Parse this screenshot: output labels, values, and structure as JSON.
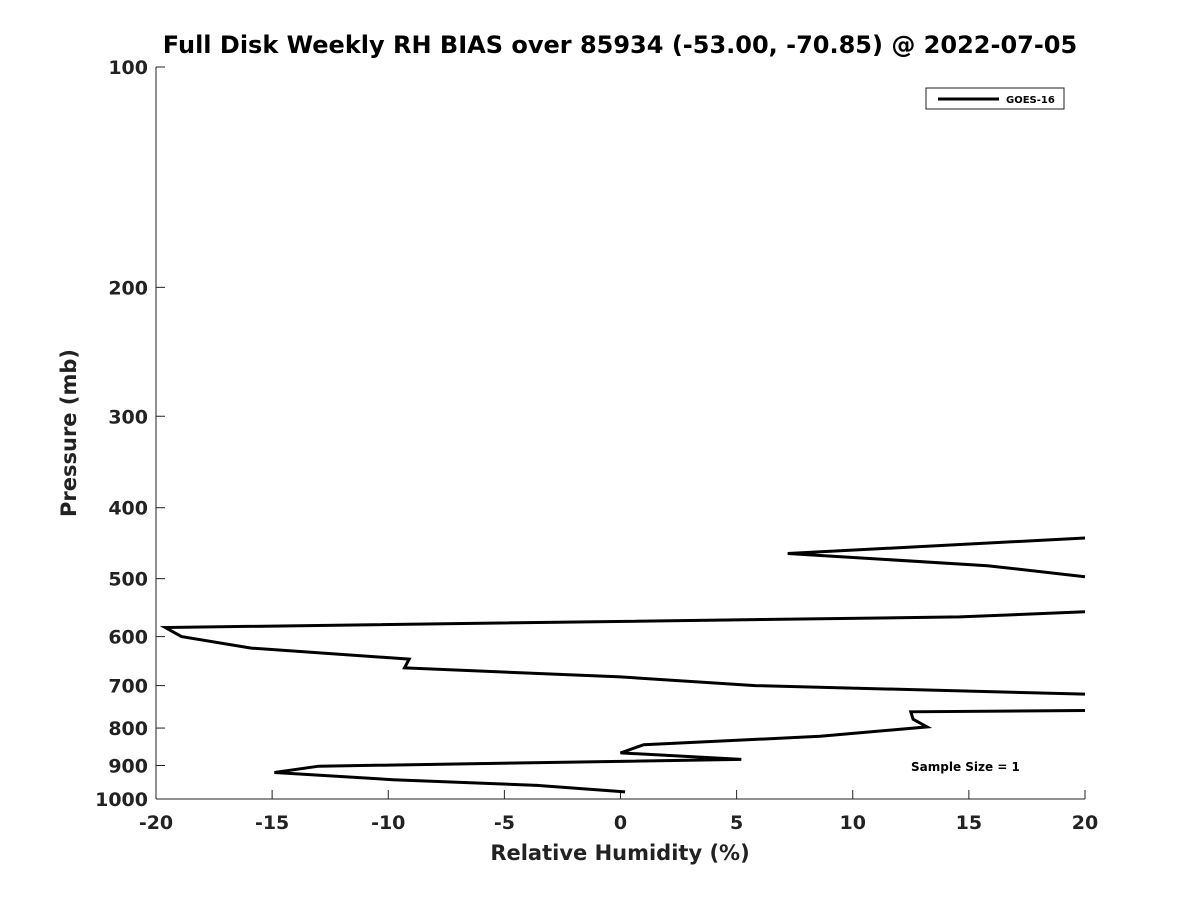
{
  "chart_data": {
    "type": "line",
    "title": "Full Disk Weekly RH BIAS over 85934 (-53.00, -70.85) @ 2022-07-05",
    "xlabel": "Relative Humidity (%)",
    "ylabel": "Pressure (mb)",
    "xlim": [
      -20,
      20
    ],
    "ylim": [
      100,
      1000
    ],
    "yscale": "log",
    "y_reversed": true,
    "xticks": [
      -20,
      -15,
      -10,
      -5,
      0,
      5,
      10,
      15,
      20
    ],
    "yticks": [
      100,
      200,
      300,
      400,
      500,
      600,
      700,
      800,
      900,
      1000
    ],
    "grid": false,
    "legend_position": "top-right",
    "annotation": "Sample Size = 1",
    "line_color": "#000000",
    "series": [
      {
        "name": "GOES-16",
        "points": [
          {
            "x": 20.0,
            "y": 440
          },
          {
            "x": 7.2,
            "y": 462
          },
          {
            "x": 15.8,
            "y": 480
          },
          {
            "x": 20.0,
            "y": 497
          },
          null,
          {
            "x": 20.0,
            "y": 555
          },
          {
            "x": 14.6,
            "y": 564
          },
          {
            "x": -19.6,
            "y": 583
          },
          {
            "x": -18.9,
            "y": 600
          },
          {
            "x": -15.9,
            "y": 622
          },
          {
            "x": -9.1,
            "y": 644
          },
          {
            "x": -9.3,
            "y": 662
          },
          {
            "x": 0.0,
            "y": 681
          },
          {
            "x": 5.8,
            "y": 700
          },
          {
            "x": 20.0,
            "y": 719
          },
          null,
          {
            "x": 20.0,
            "y": 757
          },
          {
            "x": 12.5,
            "y": 760
          },
          {
            "x": 12.6,
            "y": 778
          },
          {
            "x": 13.2,
            "y": 797
          },
          {
            "x": 8.6,
            "y": 821
          },
          {
            "x": 1.0,
            "y": 843
          },
          {
            "x": 0.0,
            "y": 865
          },
          {
            "x": 5.2,
            "y": 883
          },
          {
            "x": -13.0,
            "y": 902
          },
          {
            "x": -14.9,
            "y": 920
          },
          {
            "x": -9.8,
            "y": 941
          },
          {
            "x": -3.6,
            "y": 958
          },
          {
            "x": 0.2,
            "y": 978
          }
        ]
      }
    ]
  }
}
